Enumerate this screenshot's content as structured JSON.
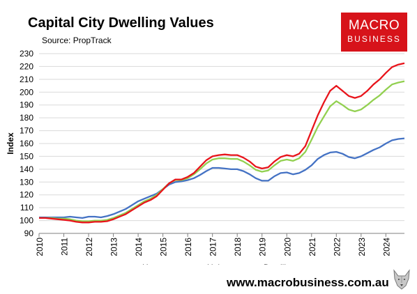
{
  "header": {
    "title": "Capital City Dwelling Values",
    "source": "Source: PropTrack"
  },
  "logo": {
    "line1": "MACRO",
    "line2": "BUSINESS",
    "color": "#d7131a"
  },
  "footer": {
    "website": "www.macrobusiness.com.au",
    "mascot_icon": "wolf-mascot-icon"
  },
  "chart_data": {
    "type": "line",
    "title": "Capital City Dwelling Values",
    "ylabel": "Index",
    "xlabel": "",
    "ylim": [
      90,
      230
    ],
    "yticks": [
      90,
      100,
      110,
      120,
      130,
      140,
      150,
      160,
      170,
      180,
      190,
      200,
      210,
      220,
      230
    ],
    "xlim": [
      2010,
      2024.75
    ],
    "xticks": [
      "2010",
      "2011",
      "2012",
      "2013",
      "2014",
      "2015",
      "2016",
      "2017",
      "2018",
      "2019",
      "2020",
      "2021",
      "2022",
      "2023",
      "2024"
    ],
    "grid": "horizontal",
    "legend": "bottom",
    "series": [
      {
        "name": "Houses",
        "color": "#e8141b",
        "points": [
          [
            2010.0,
            102
          ],
          [
            2010.25,
            102
          ],
          [
            2010.5,
            101.5
          ],
          [
            2010.75,
            101
          ],
          [
            2011.0,
            100.5
          ],
          [
            2011.25,
            100
          ],
          [
            2011.5,
            99
          ],
          [
            2011.75,
            98.5
          ],
          [
            2012.0,
            98.5
          ],
          [
            2012.25,
            99
          ],
          [
            2012.5,
            99
          ],
          [
            2012.75,
            99.5
          ],
          [
            2013.0,
            101
          ],
          [
            2013.25,
            103
          ],
          [
            2013.5,
            105
          ],
          [
            2013.75,
            108
          ],
          [
            2014.0,
            111
          ],
          [
            2014.25,
            114
          ],
          [
            2014.5,
            116
          ],
          [
            2014.75,
            119
          ],
          [
            2015.0,
            124
          ],
          [
            2015.25,
            129
          ],
          [
            2015.5,
            132
          ],
          [
            2015.75,
            132
          ],
          [
            2016.0,
            134
          ],
          [
            2016.25,
            137
          ],
          [
            2016.5,
            142
          ],
          [
            2016.75,
            147
          ],
          [
            2017.0,
            150
          ],
          [
            2017.25,
            151
          ],
          [
            2017.5,
            151.5
          ],
          [
            2017.75,
            151
          ],
          [
            2018.0,
            151
          ],
          [
            2018.25,
            149
          ],
          [
            2018.5,
            146
          ],
          [
            2018.75,
            142
          ],
          [
            2019.0,
            140.5
          ],
          [
            2019.25,
            141.5
          ],
          [
            2019.5,
            146
          ],
          [
            2019.75,
            149.5
          ],
          [
            2020.0,
            151
          ],
          [
            2020.25,
            150
          ],
          [
            2020.5,
            152
          ],
          [
            2020.75,
            158
          ],
          [
            2021.0,
            170
          ],
          [
            2021.25,
            182
          ],
          [
            2021.5,
            192
          ],
          [
            2021.75,
            201
          ],
          [
            2022.0,
            205
          ],
          [
            2022.25,
            201
          ],
          [
            2022.5,
            197
          ],
          [
            2022.75,
            195.5
          ],
          [
            2023.0,
            197
          ],
          [
            2023.25,
            201
          ],
          [
            2023.5,
            206
          ],
          [
            2023.75,
            210
          ],
          [
            2024.0,
            215
          ],
          [
            2024.25,
            219.5
          ],
          [
            2024.5,
            221.5
          ],
          [
            2024.75,
            222.5
          ]
        ]
      },
      {
        "name": "Units",
        "color": "#4472c4",
        "points": [
          [
            2010.0,
            102.5
          ],
          [
            2010.25,
            102.5
          ],
          [
            2010.5,
            102.5
          ],
          [
            2010.75,
            102.5
          ],
          [
            2011.0,
            102.5
          ],
          [
            2011.25,
            103
          ],
          [
            2011.5,
            102.5
          ],
          [
            2011.75,
            102
          ],
          [
            2012.0,
            103
          ],
          [
            2012.25,
            103
          ],
          [
            2012.5,
            102.5
          ],
          [
            2012.75,
            103.5
          ],
          [
            2013.0,
            105
          ],
          [
            2013.25,
            107
          ],
          [
            2013.5,
            109
          ],
          [
            2013.75,
            112
          ],
          [
            2014.0,
            115
          ],
          [
            2014.25,
            117
          ],
          [
            2014.5,
            119
          ],
          [
            2014.75,
            121
          ],
          [
            2015.0,
            124.5
          ],
          [
            2015.25,
            128
          ],
          [
            2015.5,
            130
          ],
          [
            2015.75,
            130.5
          ],
          [
            2016.0,
            131.5
          ],
          [
            2016.25,
            133
          ],
          [
            2016.5,
            135.5
          ],
          [
            2016.75,
            138.5
          ],
          [
            2017.0,
            141
          ],
          [
            2017.25,
            141
          ],
          [
            2017.5,
            140.5
          ],
          [
            2017.75,
            140
          ],
          [
            2018.0,
            140
          ],
          [
            2018.25,
            138.5
          ],
          [
            2018.5,
            136
          ],
          [
            2018.75,
            133
          ],
          [
            2019.0,
            131
          ],
          [
            2019.25,
            131
          ],
          [
            2019.5,
            134.5
          ],
          [
            2019.75,
            137
          ],
          [
            2020.0,
            137.5
          ],
          [
            2020.25,
            136
          ],
          [
            2020.5,
            137
          ],
          [
            2020.75,
            139.5
          ],
          [
            2021.0,
            143
          ],
          [
            2021.25,
            148
          ],
          [
            2021.5,
            151
          ],
          [
            2021.75,
            153
          ],
          [
            2022.0,
            153.5
          ],
          [
            2022.25,
            152
          ],
          [
            2022.5,
            149.5
          ],
          [
            2022.75,
            148.5
          ],
          [
            2023.0,
            150
          ],
          [
            2023.25,
            152.5
          ],
          [
            2023.5,
            155
          ],
          [
            2023.75,
            157
          ],
          [
            2024.0,
            160
          ],
          [
            2024.25,
            162.5
          ],
          [
            2024.5,
            163.5
          ],
          [
            2024.75,
            164
          ]
        ]
      },
      {
        "name": "Dwellings",
        "color": "#92d050",
        "points": [
          [
            2010.0,
            102
          ],
          [
            2010.25,
            102
          ],
          [
            2010.5,
            102
          ],
          [
            2010.75,
            101.5
          ],
          [
            2011.0,
            101.5
          ],
          [
            2011.25,
            101
          ],
          [
            2011.5,
            100
          ],
          [
            2011.75,
            99.5
          ],
          [
            2012.0,
            99.5
          ],
          [
            2012.25,
            100
          ],
          [
            2012.5,
            100
          ],
          [
            2012.75,
            100.5
          ],
          [
            2013.0,
            102
          ],
          [
            2013.25,
            104
          ],
          [
            2013.5,
            106
          ],
          [
            2013.75,
            109
          ],
          [
            2014.0,
            112
          ],
          [
            2014.25,
            115
          ],
          [
            2014.5,
            117
          ],
          [
            2014.75,
            120
          ],
          [
            2015.0,
            124.5
          ],
          [
            2015.25,
            129
          ],
          [
            2015.5,
            131.5
          ],
          [
            2015.75,
            131.5
          ],
          [
            2016.0,
            133
          ],
          [
            2016.25,
            136
          ],
          [
            2016.5,
            140
          ],
          [
            2016.75,
            144.5
          ],
          [
            2017.0,
            147.5
          ],
          [
            2017.25,
            148.5
          ],
          [
            2017.5,
            148.5
          ],
          [
            2017.75,
            148
          ],
          [
            2018.0,
            148
          ],
          [
            2018.25,
            146
          ],
          [
            2018.5,
            143
          ],
          [
            2018.75,
            139.5
          ],
          [
            2019.0,
            138
          ],
          [
            2019.25,
            139
          ],
          [
            2019.5,
            143
          ],
          [
            2019.75,
            146.5
          ],
          [
            2020.0,
            147.5
          ],
          [
            2020.25,
            146.5
          ],
          [
            2020.5,
            148.5
          ],
          [
            2020.75,
            153.5
          ],
          [
            2021.0,
            163
          ],
          [
            2021.25,
            173
          ],
          [
            2021.5,
            181
          ],
          [
            2021.75,
            189
          ],
          [
            2022.0,
            193
          ],
          [
            2022.25,
            190
          ],
          [
            2022.5,
            186.5
          ],
          [
            2022.75,
            185
          ],
          [
            2023.0,
            186.5
          ],
          [
            2023.25,
            190
          ],
          [
            2023.5,
            194
          ],
          [
            2023.75,
            197.5
          ],
          [
            2024.0,
            202
          ],
          [
            2024.25,
            206
          ],
          [
            2024.5,
            207.5
          ],
          [
            2024.75,
            208.5
          ]
        ]
      }
    ]
  }
}
